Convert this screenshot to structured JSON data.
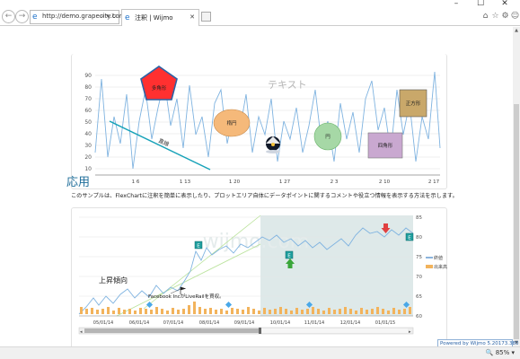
{
  "window": {
    "minimize": "–",
    "maximize": "☐",
    "close": "✕"
  },
  "toolbar": {
    "back": "←",
    "forward": "→",
    "url_host": "http://demo.grapecity.com",
    "url_rest": "/- ",
    "url_tools": "⌕ ▾ ↻",
    "tab_title": "注釈 | Wijmo",
    "tab_close": "✕",
    "right_icons": [
      "⌂",
      "☆",
      "⚙",
      "☺"
    ]
  },
  "annotation_chart": {
    "text_annotation": "テキスト",
    "shapes": {
      "polygon": "多角形",
      "ellipse": "楕円",
      "circle": "円",
      "square": "正方形",
      "rectangle": "四角形",
      "line": "直線"
    },
    "y_ticks": [
      "10",
      "20",
      "30",
      "40",
      "50",
      "60",
      "70",
      "80",
      "90"
    ],
    "x_ticks": [
      "1 6",
      "1 13",
      "1 20",
      "1 27",
      "2 3",
      "2 10",
      "2 17"
    ]
  },
  "section": {
    "title": "応用",
    "description": "このサンプルは、FlexChartに注釈を簡単に表示したり、プロットエリア自体にデータポイントに関するコメントや役立つ情報を表示する方法を示します。"
  },
  "stock_chart": {
    "watermark": "wijmo.com",
    "trend_label": "上昇傾向",
    "callout": "Facebook IncがLiveRailを買収。",
    "y_ticks": [
      "60",
      "65",
      "70",
      "75",
      "80",
      "85"
    ],
    "x_ticks": [
      "05/01/14",
      "06/01/14",
      "07/01/14",
      "08/01/14",
      "09/01/14",
      "10/01/14",
      "11/01/14",
      "12/01/14",
      "01/01/15"
    ],
    "legend": [
      {
        "name": "終値",
        "color": "#8cb4dc"
      },
      {
        "name": "出来高",
        "color": "#f2b35c"
      }
    ],
    "markers": [
      "E",
      "E",
      "E"
    ],
    "scroll_left": "◂",
    "scroll_right": "▸"
  },
  "status": {
    "powered_by": "Powered by Wijmo 5.20173.380 Eval",
    "zoom": "🔍 85% ▾"
  },
  "colors": {
    "accent": "#1e6d9a",
    "polygon_fill": "#ff3030",
    "ellipse_fill": "#f5b97a",
    "circle_fill": "#a6d8a6",
    "square_fill": "#c9a86a",
    "rectangle_fill": "#c9a8d0",
    "line_color": "#17a2b8"
  }
}
